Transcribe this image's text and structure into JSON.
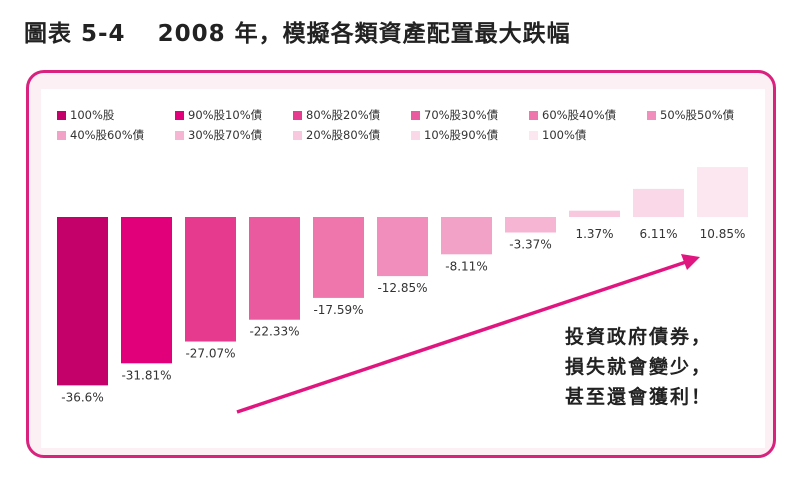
{
  "figure_label": "圖表 5-4",
  "title": "2008 年，模擬各類資產配置最大跌幅",
  "callout_lines": [
    "投資政府債券，",
    "損失就會變少，",
    "甚至還會獲利！"
  ],
  "chart_data": {
    "type": "bar",
    "title": "2008 年，模擬各類資產配置最大跌幅",
    "xlabel": "",
    "ylabel": "",
    "ylim": [
      -40,
      12
    ],
    "grid": false,
    "legend_placement": "top",
    "categories": [
      "100%股",
      "90%股10%債",
      "80%股20%債",
      "70%股30%債",
      "60%股40%債",
      "50%股50%債",
      "40%股60%債",
      "30%股70%債",
      "20%股80%債",
      "10%股90%債",
      "100%債"
    ],
    "values": [
      -36.6,
      -31.81,
      -27.07,
      -22.33,
      -17.59,
      -12.85,
      -8.11,
      -3.37,
      1.37,
      6.11,
      10.85
    ],
    "value_labels": [
      "-36.6%",
      "-31.81%",
      "-27.07%",
      "-22.33%",
      "-17.59%",
      "-12.85%",
      "-8.11%",
      "-3.37%",
      "1.37%",
      "6.11%",
      "10.85%"
    ],
    "colors": [
      "#c4006b",
      "#e2007a",
      "#e63a8f",
      "#ea5a9e",
      "#ee76ad",
      "#f18ebb",
      "#f3a2c7",
      "#f6b6d3",
      "#f8c8de",
      "#fad8e7",
      "#fce6f0"
    ]
  }
}
